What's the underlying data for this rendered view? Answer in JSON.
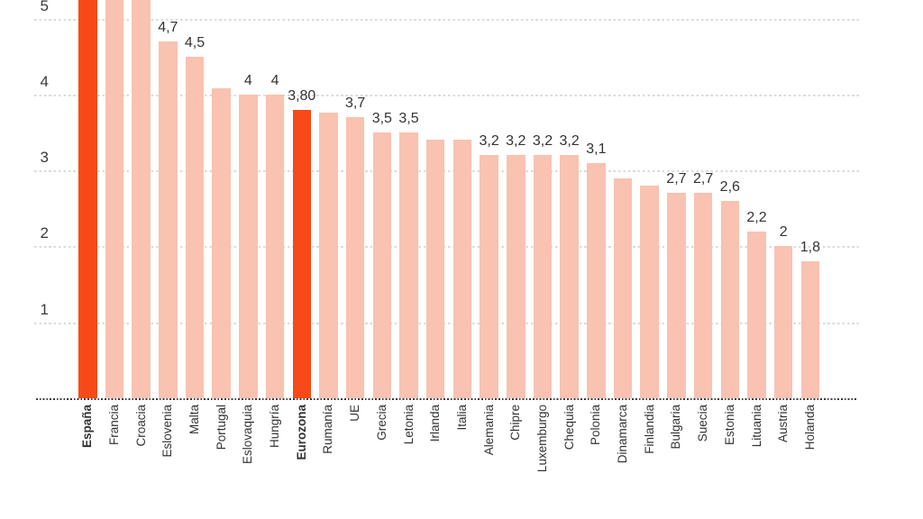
{
  "page": {
    "background": "#ffffff"
  },
  "chart_data": {
    "type": "bar",
    "decimal_separator": ",",
    "y_axis": {
      "ticks": [
        5,
        4,
        3,
        2,
        1
      ],
      "visible_top": 5.27,
      "grid_style": "dashed"
    },
    "x_axis": {
      "baseline_style": "dotted",
      "label_rotation_degrees": -90
    },
    "legend": null,
    "colors": {
      "bar_default": "#f9c2b1",
      "bar_highlight": "#f74a18",
      "label_text": "#333333",
      "gridline": "#dbdbdb",
      "baseline": "#3c3c3c",
      "background": "#ffffff"
    },
    "bars": [
      {
        "name": "España",
        "value": null,
        "value_label": "",
        "clipped": true,
        "highlight": true,
        "bold": true
      },
      {
        "name": "Francia",
        "value": null,
        "value_label": "",
        "clipped": true,
        "highlight": false,
        "bold": false
      },
      {
        "name": "Croacia",
        "value": null,
        "value_label": "",
        "clipped": true,
        "highlight": false,
        "bold": false
      },
      {
        "name": "Eslovenia",
        "value": 4.7,
        "value_label": "4,7",
        "clipped": false,
        "highlight": false,
        "bold": false
      },
      {
        "name": "Malta",
        "value": 4.5,
        "value_label": "4,5",
        "clipped": false,
        "highlight": false,
        "bold": false
      },
      {
        "name": "Portugal",
        "value": 4.08,
        "value_label": "",
        "clipped": false,
        "highlight": false,
        "bold": false
      },
      {
        "name": "Eslovaquia",
        "value": 4.0,
        "value_label": "4",
        "clipped": false,
        "highlight": false,
        "bold": false
      },
      {
        "name": "Hungría",
        "value": 4.0,
        "value_label": "4",
        "clipped": false,
        "highlight": false,
        "bold": false
      },
      {
        "name": "Eurozona",
        "value": 3.8,
        "value_label": "3,80",
        "clipped": false,
        "highlight": true,
        "bold": true
      },
      {
        "name": "Rumanía",
        "value": 3.76,
        "value_label": "",
        "clipped": false,
        "highlight": false,
        "bold": false
      },
      {
        "name": "UE",
        "value": 3.7,
        "value_label": "3,7",
        "clipped": false,
        "highlight": false,
        "bold": false
      },
      {
        "name": "Grecia",
        "value": 3.5,
        "value_label": "3,5",
        "clipped": false,
        "highlight": false,
        "bold": false
      },
      {
        "name": "Letonia",
        "value": 3.5,
        "value_label": "3,5",
        "clipped": false,
        "highlight": false,
        "bold": false
      },
      {
        "name": "Irlanda",
        "value": 3.4,
        "value_label": "",
        "clipped": false,
        "highlight": false,
        "bold": false
      },
      {
        "name": "Italia",
        "value": 3.4,
        "value_label": "",
        "clipped": false,
        "highlight": false,
        "bold": false
      },
      {
        "name": "Alemania",
        "value": 3.2,
        "value_label": "3,2",
        "clipped": false,
        "highlight": false,
        "bold": false
      },
      {
        "name": "Chipre",
        "value": 3.2,
        "value_label": "3,2",
        "clipped": false,
        "highlight": false,
        "bold": false
      },
      {
        "name": "Luxemburgo",
        "value": 3.2,
        "value_label": "3,2",
        "clipped": false,
        "highlight": false,
        "bold": false
      },
      {
        "name": "Chequia",
        "value": 3.2,
        "value_label": "3,2",
        "clipped": false,
        "highlight": false,
        "bold": false
      },
      {
        "name": "Polonia",
        "value": 3.1,
        "value_label": "3,1",
        "clipped": false,
        "highlight": false,
        "bold": false
      },
      {
        "name": "Dinamarca",
        "value": 2.9,
        "value_label": "",
        "clipped": false,
        "highlight": false,
        "bold": false
      },
      {
        "name": "Finlandia",
        "value": 2.8,
        "value_label": "",
        "clipped": false,
        "highlight": false,
        "bold": false
      },
      {
        "name": "Bulgaria",
        "value": 2.7,
        "value_label": "2,7",
        "clipped": false,
        "highlight": false,
        "bold": false
      },
      {
        "name": "Suecia",
        "value": 2.7,
        "value_label": "2,7",
        "clipped": false,
        "highlight": false,
        "bold": false
      },
      {
        "name": "Estonia",
        "value": 2.6,
        "value_label": "2,6",
        "clipped": false,
        "highlight": false,
        "bold": false
      },
      {
        "name": "Lituania",
        "value": 2.2,
        "value_label": "2,2",
        "clipped": false,
        "highlight": false,
        "bold": false
      },
      {
        "name": "Austria",
        "value": 2.0,
        "value_label": "2",
        "clipped": false,
        "highlight": false,
        "bold": false
      },
      {
        "name": "Holanda",
        "value": 1.8,
        "value_label": "1,8",
        "clipped": false,
        "highlight": false,
        "bold": false
      }
    ]
  }
}
